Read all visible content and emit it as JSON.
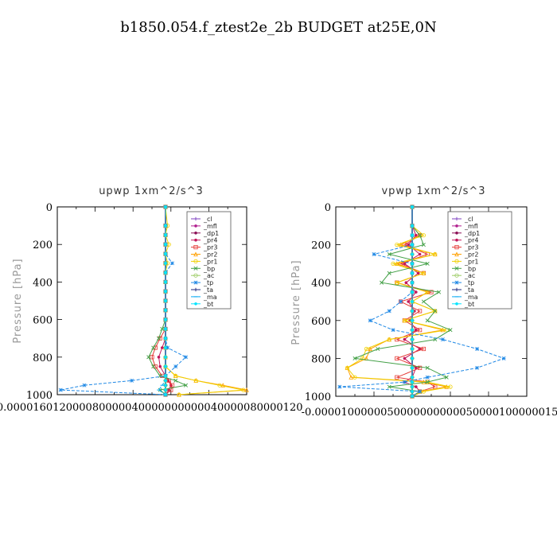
{
  "figure_title": "b1850.054.f_ztest2e_2b  BUDGET at25E,0N",
  "chart_data": [
    {
      "type": "line",
      "title": "upwp   1xm^2/s^3",
      "ylabel": "Pressure [hPa]",
      "xlabel": "",
      "ylim": [
        1000,
        0
      ],
      "xlim": [
        -1.6e-05,
        1.2e-05
      ],
      "ytick_labels": [
        "0",
        "200",
        "400",
        "600",
        "800",
        "1000"
      ],
      "xtick_labels_text": "-0.000016012000080000040000000000040000080000120",
      "legend_position": "top-right",
      "levels": [
        100,
        150,
        200,
        250,
        300,
        350,
        400,
        450,
        500,
        550,
        600,
        650,
        700,
        750,
        800,
        850,
        900,
        925,
        950,
        975,
        1000
      ],
      "series": [
        {
          "name": "_cl",
          "color": "#7d3fc1",
          "marker": "plus",
          "values": [
            0,
            0,
            0,
            0,
            0,
            0,
            0,
            0,
            0,
            0,
            0,
            0,
            0,
            0,
            0,
            0,
            0,
            0,
            0,
            0,
            0
          ]
        },
        {
          "name": "_mfl",
          "color": "#b01f8e",
          "marker": "dot",
          "values": [
            0,
            0,
            0,
            0,
            0,
            0,
            0,
            0,
            0,
            0,
            0,
            0,
            0,
            0,
            0,
            0,
            0,
            0,
            0,
            0,
            0
          ]
        },
        {
          "name": "_dp1",
          "color": "#8b0f55",
          "marker": "dot",
          "values": [
            0,
            0,
            0,
            0,
            0,
            0,
            0,
            0,
            0,
            0,
            0,
            0,
            0,
            0,
            0,
            0,
            0,
            0,
            0,
            0,
            0
          ]
        },
        {
          "name": "_pr4",
          "color": "#c2185b",
          "marker": "dot",
          "values": [
            0,
            0,
            0,
            0,
            0,
            0,
            0,
            0,
            0,
            0,
            0,
            0,
            0,
            -5e-07,
            -1e-06,
            -8e-07,
            0,
            4e-07,
            8e-07,
            5e-07,
            0
          ]
        },
        {
          "name": "_pr3",
          "color": "#e53935",
          "marker": "square",
          "values": [
            0,
            0,
            0,
            0,
            0,
            0,
            0,
            0,
            0,
            0,
            0,
            0,
            -8e-07,
            -1.5e-06,
            -2e-06,
            -1.5e-06,
            -5e-07,
            5e-07,
            1e-06,
            8e-07,
            0
          ]
        },
        {
          "name": "_pr2",
          "color": "#ffa000",
          "marker": "tri",
          "values": [
            0,
            0,
            0,
            0,
            0,
            0,
            0,
            0,
            0,
            0,
            0,
            0,
            0,
            0,
            0,
            0,
            1.5e-06,
            4.5e-06,
            8.5e-06,
            1.2e-05,
            2e-06
          ]
        },
        {
          "name": "_pr1",
          "color": "#f0d000",
          "marker": "circle",
          "values": [
            3e-07,
            0,
            5e-07,
            0,
            3e-07,
            0,
            0,
            0,
            0,
            0,
            0,
            0,
            0,
            0,
            0,
            0,
            1.5e-06,
            4.5e-06,
            8e-06,
            1.15e-05,
            2e-06
          ]
        },
        {
          "name": "_bp",
          "color": "#43a047",
          "marker": "cross",
          "values": [
            0,
            0,
            0,
            0,
            0,
            0,
            0,
            0,
            0,
            0,
            0,
            -5e-07,
            -1e-06,
            -1.8e-06,
            -2.5e-06,
            -1.8e-06,
            -8e-07,
            1.5e-06,
            3e-06,
            -8e-07,
            0
          ]
        },
        {
          "name": "_ac",
          "color": "#9ccc65",
          "marker": "circle",
          "values": [
            0,
            0,
            0,
            0,
            0,
            0,
            0,
            0,
            0,
            0,
            0,
            0,
            0,
            0,
            0,
            0,
            0,
            0,
            0,
            0,
            0
          ]
        },
        {
          "name": "_tp",
          "color": "#1e88e5",
          "marker": "star",
          "values": [
            0,
            0,
            0,
            0,
            1e-06,
            0,
            0,
            0,
            0,
            0,
            0,
            0,
            0,
            3e-07,
            3e-06,
            1.5e-06,
            0,
            -5e-06,
            -1.2e-05,
            -1.55e-05,
            0
          ]
        },
        {
          "name": "_ta",
          "color": "#1a237e",
          "marker": "plus",
          "values": [
            0,
            0,
            0,
            0,
            0,
            0,
            0,
            0,
            0,
            0,
            0,
            0,
            0,
            0,
            0,
            0,
            0,
            0,
            0,
            0,
            0
          ]
        },
        {
          "name": "_ma",
          "color": "#03a9f4",
          "marker": "dash",
          "values": [
            0,
            0,
            0,
            0,
            0,
            0,
            0,
            0,
            0,
            0,
            0,
            0,
            0,
            0,
            0,
            0,
            0,
            0,
            -5e-07,
            -1e-06,
            0
          ]
        },
        {
          "name": "_bt",
          "color": "#00e5ff",
          "marker": "dot",
          "values": [
            0,
            0,
            0,
            0,
            0,
            0,
            0,
            0,
            0,
            0,
            0,
            0,
            0,
            0,
            0,
            0,
            0,
            0,
            0,
            0,
            0
          ]
        }
      ]
    },
    {
      "type": "line",
      "title": "vpwp   1xm^2/s^3",
      "ylabel": "Pressure [hPa]",
      "xlabel": "",
      "ylim": [
        1000,
        0
      ],
      "xlim": [
        -1e-05,
        1.5e-05
      ],
      "ytick_labels": [
        "0",
        "200",
        "400",
        "600",
        "800",
        "1000"
      ],
      "xtick_labels_text": "-0.0000100000050000000000050000100000015",
      "legend_position": "top-right",
      "levels": [
        100,
        150,
        200,
        250,
        300,
        350,
        400,
        450,
        500,
        550,
        600,
        650,
        700,
        750,
        800,
        850,
        900,
        925,
        950,
        975,
        1000
      ],
      "series": [
        {
          "name": "_cl",
          "color": "#7d3fc1",
          "marker": "plus",
          "values": [
            0,
            0,
            0,
            0,
            0,
            0,
            0,
            0,
            0,
            0,
            0,
            0,
            0,
            0,
            0,
            0,
            0,
            0,
            0,
            0,
            0
          ]
        },
        {
          "name": "_mfl",
          "color": "#b01f8e",
          "marker": "dot",
          "values": [
            0,
            0,
            0,
            0,
            0,
            0,
            0,
            0,
            0,
            0,
            0,
            0,
            0,
            0,
            0,
            0,
            0,
            0,
            0,
            0,
            0
          ]
        },
        {
          "name": "_dp1",
          "color": "#8b0f55",
          "marker": "dot",
          "values": [
            0,
            0,
            0,
            0,
            0,
            0,
            0,
            0,
            0,
            0,
            0,
            0,
            0,
            0,
            0,
            0,
            0,
            0,
            0,
            0,
            0
          ]
        },
        {
          "name": "_pr4",
          "color": "#c2185b",
          "marker": "dot",
          "values": [
            0,
            5e-07,
            -5e-07,
            1e-06,
            -1e-06,
            8e-07,
            -8e-07,
            5e-07,
            -5e-07,
            3e-07,
            -3e-07,
            5e-07,
            -1e-06,
            1e-06,
            -1e-06,
            5e-07,
            0,
            -1e-06,
            5e-07,
            1e-06,
            0
          ]
        },
        {
          "name": "_pr3",
          "color": "#e53935",
          "marker": "square",
          "values": [
            0,
            1e-06,
            -1e-06,
            2e-06,
            -1.5e-06,
            1.5e-06,
            -2e-06,
            2.5e-06,
            -1.5e-06,
            1e-06,
            -1e-06,
            1e-06,
            -2e-06,
            1.5e-06,
            -2e-06,
            1e-06,
            -2e-06,
            2e-06,
            3e-06,
            1e-06,
            0
          ]
        },
        {
          "name": "_pr2",
          "color": "#ffa000",
          "marker": "tri",
          "values": [
            0,
            1e-06,
            -1.5e-06,
            3e-06,
            -2e-06,
            1.5e-06,
            -2e-06,
            2e-06,
            0,
            3e-06,
            -1e-06,
            4e-06,
            -3e-06,
            -5.5e-06,
            -6e-06,
            -8.5e-06,
            -8e-06,
            1.5e-06,
            4.5e-06,
            1e-06,
            0
          ]
        },
        {
          "name": "_pr1",
          "color": "#f0d000",
          "marker": "circle",
          "values": [
            0,
            1.5e-06,
            -2e-06,
            3e-06,
            -2.5e-06,
            1.5e-06,
            -2e-06,
            2e-06,
            0,
            3e-06,
            -1e-06,
            4.5e-06,
            -3e-06,
            -6e-06,
            -6.5e-06,
            -8.5e-06,
            -7.5e-06,
            2e-06,
            5e-06,
            1.5e-06,
            0
          ]
        },
        {
          "name": "_bp",
          "color": "#43a047",
          "marker": "cross",
          "values": [
            0,
            1e-06,
            1.5e-06,
            -3e-06,
            2e-06,
            -3e-06,
            -4e-06,
            3.5e-06,
            1.5e-06,
            3e-06,
            2e-06,
            5e-06,
            3e-06,
            -4.5e-06,
            -7.5e-06,
            2e-06,
            4.5e-06,
            2e-06,
            -3e-06,
            1e-06,
            0
          ]
        },
        {
          "name": "_ac",
          "color": "#9ccc65",
          "marker": "circle",
          "values": [
            0,
            0,
            0,
            0,
            0,
            0,
            0,
            0,
            0,
            0,
            0,
            0,
            0,
            0,
            0,
            0,
            0,
            0,
            0,
            0,
            0
          ]
        },
        {
          "name": "_tp",
          "color": "#1e88e5",
          "marker": "star",
          "values": [
            0,
            0,
            0,
            -5e-06,
            0,
            0,
            0,
            0,
            -1.5e-06,
            -3e-06,
            -5.5e-06,
            -2.5e-06,
            4e-06,
            8.5e-06,
            1.2e-05,
            8.5e-06,
            2e-06,
            -1e-06,
            -9.5e-06,
            1e-06,
            0
          ]
        },
        {
          "name": "_ta",
          "color": "#1a237e",
          "marker": "plus",
          "values": [
            0,
            0,
            0,
            0,
            0,
            0,
            0,
            0,
            0,
            0,
            0,
            0,
            0,
            0,
            0,
            0,
            0,
            0,
            0,
            0,
            0
          ]
        },
        {
          "name": "_ma",
          "color": "#03a9f4",
          "marker": "dash",
          "values": [
            0,
            0,
            0,
            0,
            0,
            0,
            0,
            0,
            0,
            0,
            0,
            0,
            0,
            0,
            0,
            0,
            0,
            0,
            0,
            0,
            0
          ]
        },
        {
          "name": "_bt",
          "color": "#00e5ff",
          "marker": "dot",
          "values": [
            0,
            0,
            0,
            0,
            0,
            0,
            0,
            0,
            0,
            0,
            0,
            0,
            0,
            0,
            0,
            0,
            0,
            0,
            0,
            0,
            0
          ]
        }
      ]
    }
  ]
}
